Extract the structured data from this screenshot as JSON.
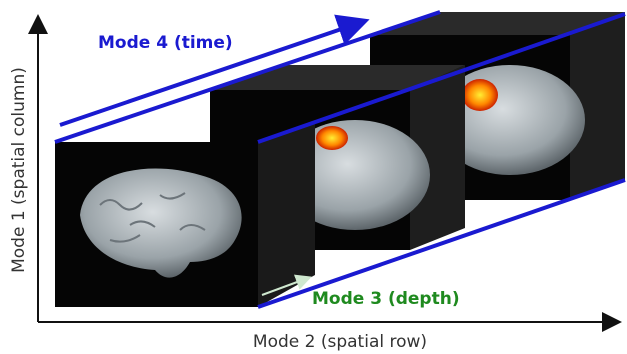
{
  "labels": {
    "mode4": "Mode 4 (time)",
    "mode1": "Mode 1 (spatial column)",
    "mode3": "Mode 3 (depth)",
    "mode2": "Mode 2 (spatial row)"
  }
}
